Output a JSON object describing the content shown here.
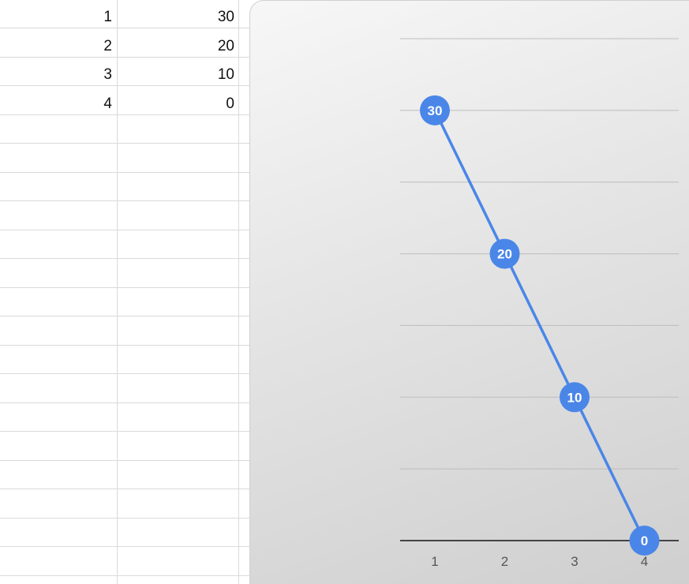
{
  "spreadsheet": {
    "rows": [
      {
        "a": "1",
        "b": "30"
      },
      {
        "a": "2",
        "b": "20"
      },
      {
        "a": "3",
        "b": "10"
      },
      {
        "a": "4",
        "b": "0"
      }
    ],
    "empty_row_count": 16
  },
  "colors": {
    "series": "#4a86e8",
    "grid": "#bdbdbd",
    "baseline": "#444444"
  },
  "chart_data": {
    "type": "line",
    "x": [
      1,
      2,
      3,
      4
    ],
    "categories": [
      "1",
      "2",
      "3",
      "4"
    ],
    "series": [
      {
        "values": [
          30,
          20,
          10,
          0
        ],
        "data_labels": [
          "30",
          "20",
          "10",
          "0"
        ]
      }
    ],
    "ylim": [
      0,
      35
    ],
    "grid": true,
    "legend": "none",
    "xlabel": "",
    "ylabel": "",
    "title": ""
  }
}
